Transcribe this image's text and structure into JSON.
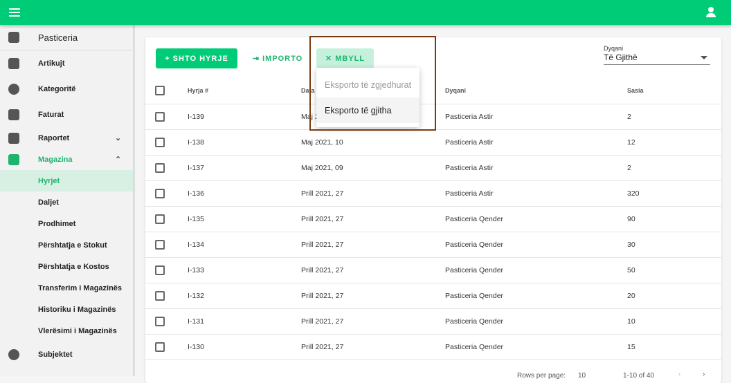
{
  "topbar": {
    "menu_icon": "hamburger-icon",
    "user_icon": "account-icon"
  },
  "sidebar": {
    "title": "Pasticeria",
    "items": [
      {
        "label": "Artikujt",
        "icon": "shopping-bag-icon"
      },
      {
        "label": "Kategoritë",
        "icon": "pie-chart-icon"
      },
      {
        "label": "Faturat",
        "icon": "receipt-icon"
      },
      {
        "label": "Raportet",
        "icon": "report-icon",
        "chevron": "⌄"
      },
      {
        "label": "Magazina",
        "icon": "dolly-icon",
        "chevron": "⌃"
      }
    ],
    "sub_items": [
      "Hyrjet",
      "Daljet",
      "Prodhimet",
      "Përshtatja e Stokut",
      "Përshtatja e Kostos",
      "Transferim i Magazinës",
      "Historiku i Magazinës",
      "Vlerësimi i Magazinës"
    ],
    "last": {
      "label": "Subjektet",
      "icon": "account-circle-icon"
    }
  },
  "toolbar": {
    "add": "+  SHTO HYRJE",
    "import": "⇥  IMPORTO",
    "close": "✕  MBYLL"
  },
  "filter": {
    "label": "Dyqani",
    "value": "Të Gjithë"
  },
  "menu": {
    "items": [
      "Eksporto të zgjedhurat",
      "Eksporto të gjitha"
    ]
  },
  "accent": "#00cc77",
  "table": {
    "headers": [
      "Hyrja #",
      "Data",
      "Dyqani",
      "Sasia"
    ],
    "rows": [
      [
        "I-139",
        "Maj 2021, 10",
        "Pasticeria Astir",
        "2"
      ],
      [
        "I-138",
        "Maj 2021, 10",
        "Pasticeria Astir",
        "12"
      ],
      [
        "I-137",
        "Maj 2021, 09",
        "Pasticeria Astir",
        "2"
      ],
      [
        "I-136",
        "Prill 2021, 27",
        "Pasticeria Astir",
        "320"
      ],
      [
        "I-135",
        "Prill 2021, 27",
        "Pasticeria Qender",
        "90"
      ],
      [
        "I-134",
        "Prill 2021, 27",
        "Pasticeria Qender",
        "30"
      ],
      [
        "I-133",
        "Prill 2021, 27",
        "Pasticeria Qender",
        "50"
      ],
      [
        "I-132",
        "Prill 2021, 27",
        "Pasticeria Qender",
        "20"
      ],
      [
        "I-131",
        "Prill 2021, 27",
        "Pasticeria Qender",
        "10"
      ],
      [
        "I-130",
        "Prill 2021, 27",
        "Pasticeria Qender",
        "15"
      ]
    ]
  },
  "footer": {
    "rows_per_page": "Rows per page:",
    "rows_value": "10",
    "range": "1-10 of 40"
  }
}
